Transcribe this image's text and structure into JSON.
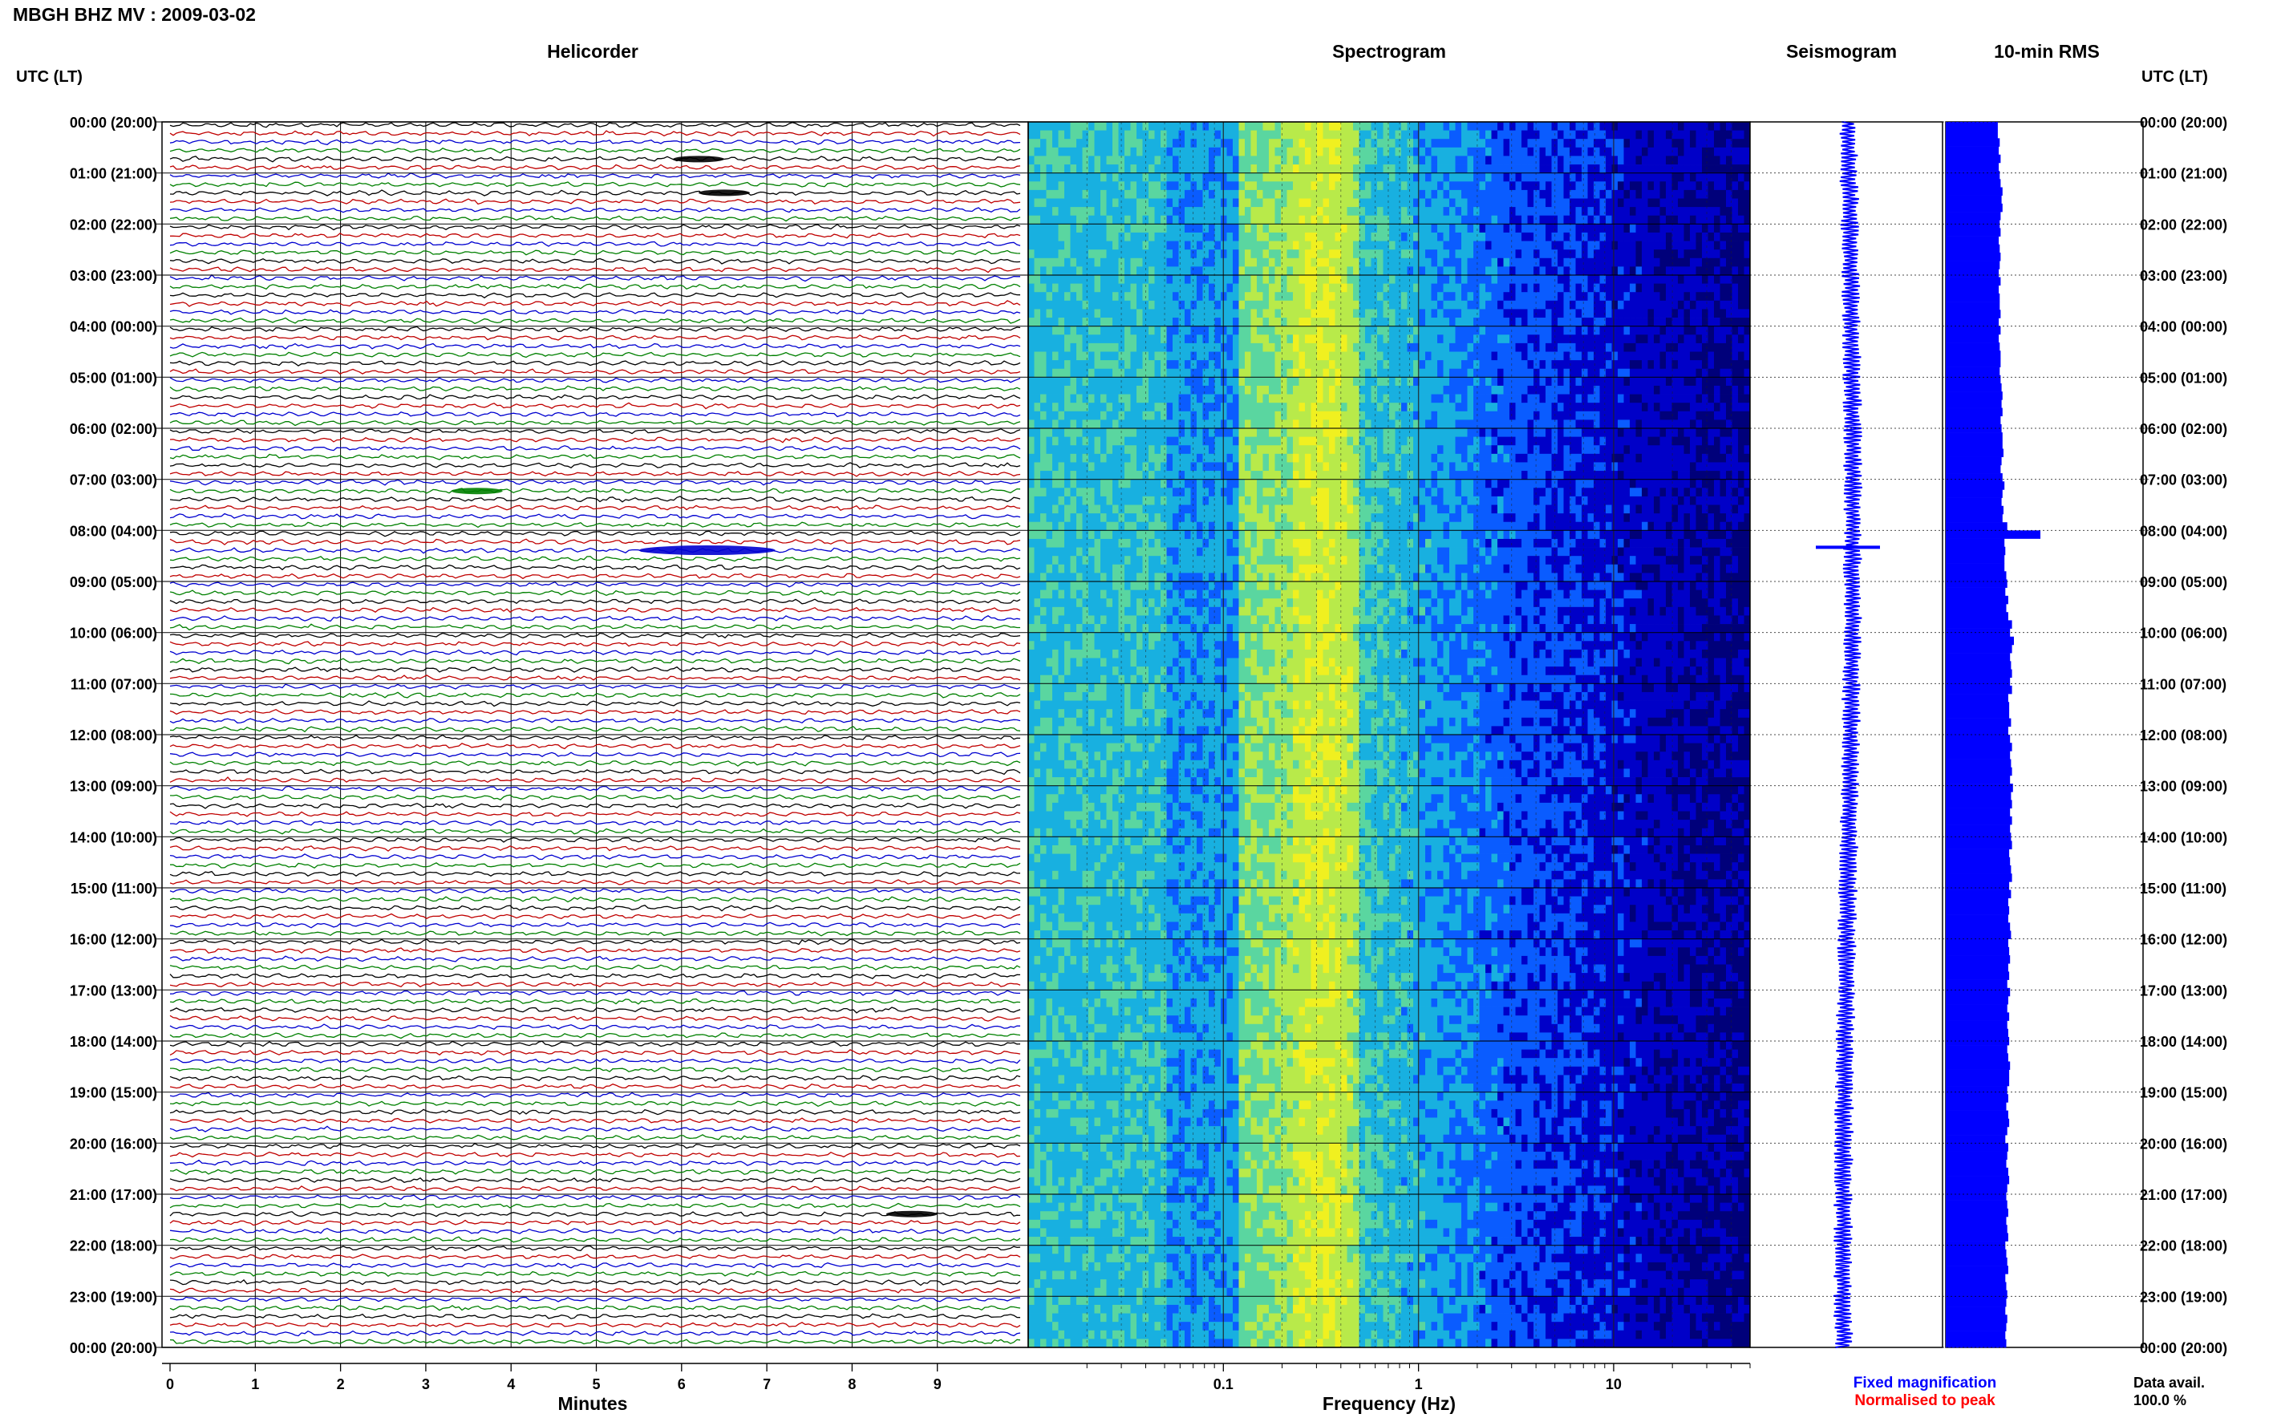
{
  "header": {
    "title": "MBGH BHZ MV : 2009-03-02"
  },
  "chart_data": {
    "type": "heatmap",
    "station_title": "MBGH BHZ MV : 2009-03-02",
    "panels": [
      "Helicorder",
      "Spectrogram",
      "Seismogram",
      "10-min RMS"
    ],
    "left_axis_label": "UTC (LT)",
    "right_axis_label": "UTC (LT)",
    "time_labels": [
      "00:00 (20:00)",
      "01:00 (21:00)",
      "02:00 (22:00)",
      "03:00 (23:00)",
      "04:00 (00:00)",
      "05:00 (01:00)",
      "06:00 (02:00)",
      "07:00 (03:00)",
      "08:00 (04:00)",
      "09:00 (05:00)",
      "10:00 (06:00)",
      "11:00 (07:00)",
      "12:00 (08:00)",
      "13:00 (09:00)",
      "14:00 (10:00)",
      "15:00 (11:00)",
      "16:00 (12:00)",
      "17:00 (13:00)",
      "18:00 (14:00)",
      "19:00 (15:00)",
      "20:00 (16:00)",
      "21:00 (17:00)",
      "22:00 (18:00)",
      "23:00 (19:00)",
      "00:00 (20:00)"
    ],
    "helicorder": {
      "xlabel": "Minutes",
      "x_ticks": [
        "0",
        "1",
        "2",
        "3",
        "4",
        "5",
        "6",
        "7",
        "8",
        "9"
      ],
      "xlim": [
        0,
        10
      ],
      "trace_colors": [
        "#000000",
        "#c00000",
        "#0000d0",
        "#008000"
      ],
      "lines_per_hour": 6,
      "events": [
        {
          "hour": 0.67,
          "minute": 6.2,
          "color": "#000000"
        },
        {
          "hour": 1.33,
          "minute": 6.5,
          "color": "#000000"
        },
        {
          "hour": 7.17,
          "minute": 3.6,
          "color": "#008000"
        },
        {
          "hour": 8.33,
          "minute": 6.3,
          "color": "#0000d0"
        },
        {
          "hour": 21.33,
          "minute": 8.7,
          "color": "#000000"
        }
      ]
    },
    "spectrogram": {
      "xlabel": "Frequency (Hz)",
      "x_scale": "log",
      "x_ticks": [
        "0.1",
        "1",
        "10"
      ],
      "xlim": [
        0.01,
        50
      ],
      "colormap": [
        "#00007a",
        "#0000c8",
        "#0a5cff",
        "#18b0e0",
        "#5ad6a0",
        "#b8ea4a",
        "#f0f020"
      ]
    },
    "seismogram": {
      "events": [
        {
          "hour": 8.33
        }
      ]
    },
    "rms": {
      "values": [
        0.55,
        0.55,
        0.57,
        0.56,
        0.58,
        0.56,
        0.57,
        0.58,
        0.6,
        0.59,
        0.6,
        0.58,
        0.57,
        0.58,
        0.56,
        0.57,
        0.58,
        0.57,
        0.56,
        0.58,
        0.56,
        0.57,
        0.57,
        0.58,
        0.56,
        0.58,
        0.56,
        0.57,
        0.58,
        0.58,
        0.57,
        0.58,
        0.59,
        0.6,
        0.59,
        0.6,
        0.58,
        0.59,
        0.6,
        0.6,
        0.61,
        0.59,
        0.58,
        0.6,
        0.62,
        0.6,
        0.59,
        0.61,
        0.6,
        0.65,
        1.0,
        0.62,
        0.63,
        0.62,
        0.62,
        0.64,
        0.65,
        0.63,
        0.66,
        0.64,
        0.66,
        0.7,
        0.68,
        0.72,
        0.7,
        0.68,
        0.69,
        0.7,
        0.68,
        0.7,
        0.66,
        0.67,
        0.67,
        0.69,
        0.66,
        0.68,
        0.7,
        0.68,
        0.69,
        0.7,
        0.68,
        0.71,
        0.69,
        0.7,
        0.68,
        0.7,
        0.68,
        0.69,
        0.7,
        0.67,
        0.68,
        0.69,
        0.7,
        0.67,
        0.69,
        0.66,
        0.67,
        0.66,
        0.68,
        0.69,
        0.66,
        0.67,
        0.68,
        0.66,
        0.67,
        0.65,
        0.68,
        0.66,
        0.65,
        0.67,
        0.65,
        0.66,
        0.67,
        0.65,
        0.66,
        0.68,
        0.67,
        0.67,
        0.65,
        0.66,
        0.64,
        0.66,
        0.67,
        0.65,
        0.63,
        0.66,
        0.65,
        0.64,
        0.66,
        0.67,
        0.65,
        0.64,
        0.65,
        0.66,
        0.64,
        0.65,
        0.66,
        0.63,
        0.64,
        0.65,
        0.66,
        0.63,
        0.64,
        0.65,
        0.64,
        0.63,
        0.65,
        0.64,
        0.63,
        0.64
      ],
      "xlim": [
        0,
        1
      ]
    },
    "legend": [
      {
        "label": "Fixed magnification",
        "color": "#0000ff"
      },
      {
        "label": "Normalised to peak",
        "color": "#ff0000"
      }
    ],
    "data_avail_label": "Data avail.",
    "data_avail_value": "100.0 %",
    "grid": true
  }
}
